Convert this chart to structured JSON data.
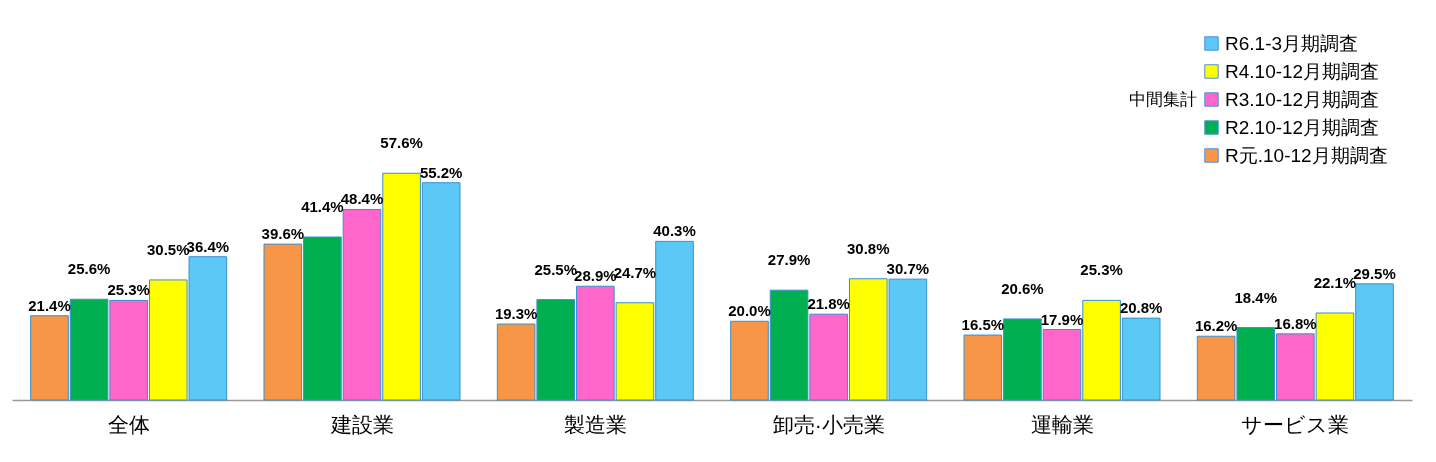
{
  "chart_data": {
    "type": "bar",
    "legend_title": "中間集計",
    "legend": "top right",
    "categories": [
      "全体",
      "建設業",
      "製造業",
      "卸売·小売業",
      "運輸業",
      "サービス業"
    ],
    "series": [
      {
        "name": "R6.1-3月期調査",
        "color": "#5bc8f5",
        "values": [
          36.4,
          55.2,
          40.3,
          30.7,
          20.8,
          29.5
        ],
        "value_labels": [
          "36.4%",
          "55.2%",
          "40.3%",
          "30.7%",
          "20.8%",
          "29.5%"
        ]
      },
      {
        "name": "R4.10-12月期調査",
        "color": "#ffff00",
        "values": [
          30.5,
          57.6,
          24.7,
          30.8,
          25.3,
          22.1
        ],
        "value_labels": [
          "30.5%",
          "57.6%",
          "24.7%",
          "30.8%",
          "25.3%",
          "22.1%"
        ]
      },
      {
        "name": "R3.10-12月期調査",
        "color": "#ff66cc",
        "values": [
          25.3,
          48.4,
          28.9,
          21.8,
          17.9,
          16.8
        ],
        "value_labels": [
          "25.3%",
          "48.4%",
          "28.9%",
          "21.8%",
          "17.9%",
          "16.8%"
        ]
      },
      {
        "name": "R2.10-12月期調査",
        "color": "#00b050",
        "values": [
          25.6,
          41.4,
          25.5,
          27.9,
          20.6,
          18.4
        ],
        "value_labels": [
          "25.6%",
          "41.4%",
          "25.5%",
          "27.9%",
          "20.6%",
          "18.4%"
        ]
      },
      {
        "name": "R元.10-12月期調査",
        "color": "#f79646",
        "values": [
          21.4,
          39.6,
          19.3,
          20.0,
          16.5,
          16.2
        ],
        "value_labels": [
          "21.4%",
          "39.6%",
          "19.3%",
          "20.0%",
          "16.5%",
          "16.2%"
        ]
      }
    ]
  }
}
